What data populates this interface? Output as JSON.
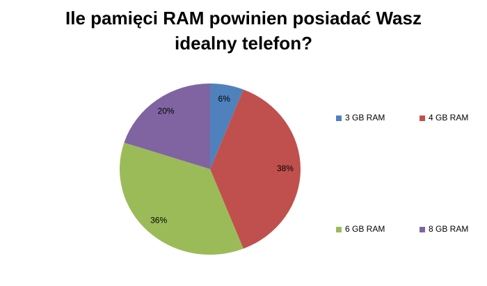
{
  "chart_data": {
    "type": "pie",
    "title": "Ile pamięci RAM powinien posiadać Wasz idealny telefon?",
    "categories": [
      "3 GB RAM",
      "4 GB RAM",
      "6 GB RAM",
      "8 GB RAM"
    ],
    "values": [
      6,
      38,
      36,
      20
    ],
    "value_labels": [
      "6%",
      "38%",
      "36%",
      "20%"
    ],
    "colors": [
      "#4f81bd",
      "#c0504d",
      "#9bbb59",
      "#8064a2"
    ],
    "legend": "right"
  }
}
